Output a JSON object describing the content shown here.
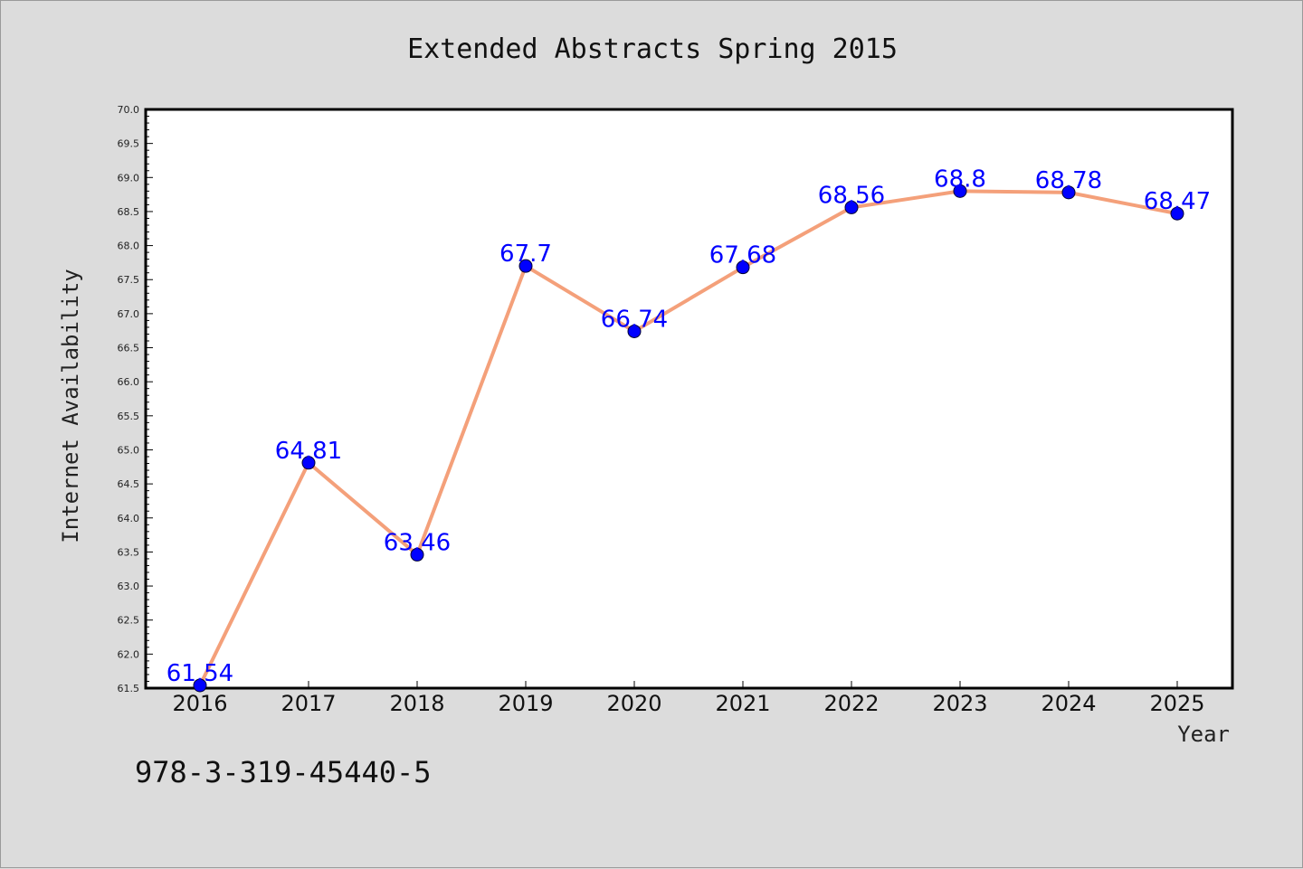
{
  "chart_data": {
    "type": "line",
    "title": "Extended Abstracts Spring 2015",
    "xlabel": "Year",
    "ylabel": "Internet Availability",
    "categories": [
      "2016",
      "2017",
      "2018",
      "2019",
      "2020",
      "2021",
      "2022",
      "2023",
      "2024",
      "2025"
    ],
    "series": [
      {
        "values": [
          61.54,
          64.81,
          63.46,
          67.7,
          66.74,
          67.68,
          68.56,
          68.8,
          68.78,
          68.47
        ],
        "data_labels": [
          "61.54",
          "64.81",
          "63.46",
          "67.7",
          "66.74",
          "67.68",
          "68.56",
          "68.8",
          "68.78",
          "68.47"
        ],
        "line_color": "#f4a07a",
        "marker_color": "#0000ff"
      }
    ],
    "ylim": [
      61.5,
      70.0
    ],
    "yticks": [
      "61.5",
      "62.0",
      "62.5",
      "63.0",
      "63.5",
      "64.0",
      "64.5",
      "65.0",
      "65.5",
      "66.0",
      "66.5",
      "67.0",
      "67.5",
      "68.0",
      "68.5",
      "69.0",
      "69.5",
      "70.0"
    ],
    "grid": false,
    "legend": "none"
  },
  "note": "978-3-319-45440-5",
  "colors": {
    "background": "#dcdcdc",
    "plot_background": "#ffffff",
    "line": "#f4a07a",
    "marker": "#0000ff",
    "data_label": "#0000ff"
  }
}
